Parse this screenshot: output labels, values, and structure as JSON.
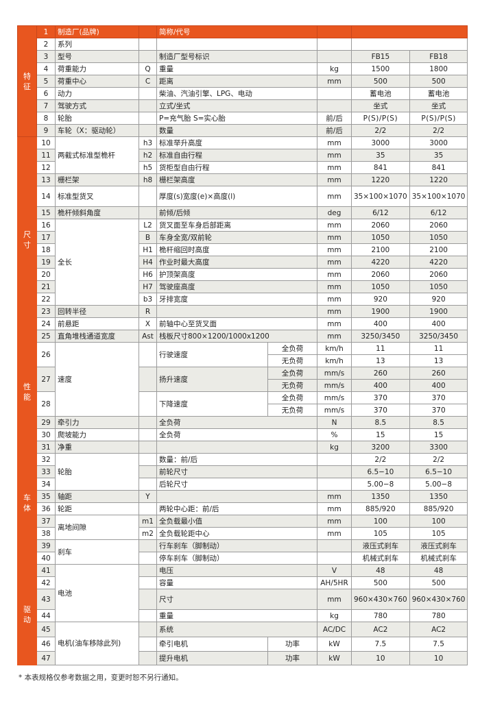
{
  "colors": {
    "accent": "#e8561f",
    "row_alt": "#ebebe6",
    "border": "#9a9a9a"
  },
  "sections": [
    {
      "label": "特征",
      "from": 1,
      "to": 9
    },
    {
      "label": "尺寸",
      "from": 10,
      "to": 25
    },
    {
      "label": "性能",
      "from": 26,
      "to": 30
    },
    {
      "label": "车体",
      "from": 31,
      "to": 40
    },
    {
      "label": "驱动",
      "from": 41,
      "to": 47
    }
  ],
  "groups": [
    {
      "label": "两截式标准型桅杆",
      "from": 10,
      "to": 12
    },
    {
      "label": "全长",
      "from": 16,
      "to": 22
    },
    {
      "label": "速度",
      "from": 26,
      "to": 28
    },
    {
      "label": "轮胎",
      "from": 32,
      "to": 34
    },
    {
      "label": "离地间隙",
      "from": 37,
      "to": 38
    },
    {
      "label": "刹车",
      "from": 39,
      "to": 40
    },
    {
      "label": "电池",
      "from": 41,
      "to": 44
    },
    {
      "label": "电机(油车移除此列)",
      "from": 45,
      "to": 47
    }
  ],
  "rows": [
    {
      "no": "1",
      "item": "制造厂(品牌)",
      "sym": "",
      "desc": "简称/代号",
      "unit": "",
      "merged": ""
    },
    {
      "no": "2",
      "item": "系列",
      "sym": "",
      "desc": "",
      "unit": "",
      "merged": ""
    },
    {
      "no": "3",
      "item": "型号",
      "sym": "",
      "desc": "制造厂型号标识",
      "unit": "",
      "v1": "FB15",
      "v2": "FB18"
    },
    {
      "no": "4",
      "item": "荷重能力",
      "sym": "Q",
      "desc": "重量",
      "unit": "kg",
      "v1": "1500",
      "v2": "1800"
    },
    {
      "no": "5",
      "item": "荷重中心",
      "sym": "C",
      "desc": "距离",
      "unit": "mm",
      "v1": "500",
      "v2": "500"
    },
    {
      "no": "6",
      "item": "动力",
      "sym": "",
      "desc": "柴油、汽油引擎、LPG、电动",
      "unit": "",
      "v1": "蓄电池",
      "v2": "蓄电池"
    },
    {
      "no": "7",
      "item": "驾驶方式",
      "sym": "",
      "desc": "立式/坐式",
      "unit": "",
      "v1": "坐式",
      "v2": "坐式"
    },
    {
      "no": "8",
      "item": "轮胎",
      "sym": "",
      "desc": "P=充气胎 S=实心胎",
      "unit": "前/后",
      "v1": "P(S)/P(S)",
      "v2": "P(S)/P(S)"
    },
    {
      "no": "9",
      "item": "车轮（X：驱动轮）",
      "sym": "",
      "desc": "数量",
      "unit": "前/后",
      "v1": "2/2",
      "v2": "2/2"
    },
    {
      "no": "10",
      "sym": "h3",
      "desc": "标准举升高度",
      "unit": "mm",
      "v1": "3000",
      "v2": "3000"
    },
    {
      "no": "11",
      "sym": "h2",
      "desc": "标准自由行程",
      "unit": "mm",
      "v1": "35",
      "v2": "35"
    },
    {
      "no": "12",
      "sym": "h5",
      "desc": "货柜型自由行程",
      "unit": "mm",
      "v1": "841",
      "v2": "841"
    },
    {
      "no": "13",
      "item": "栅栏架",
      "sym": "h8",
      "desc": "栅栏架高度",
      "unit": "mm",
      "v1": "1220",
      "v2": "1220"
    },
    {
      "no": "14",
      "item": "标准型货叉",
      "sym": "",
      "desc": "厚度(s)宽度(e)×高度(l)",
      "unit": "mm",
      "v1": "35×100×1070",
      "v2": "35×100×1070"
    },
    {
      "no": "15",
      "item": "桅杆倾斜角度",
      "sym": "",
      "desc": "前倾/后倾",
      "unit": "deg",
      "v1": "6/12",
      "v2": "6/12"
    },
    {
      "no": "16",
      "sym": "L2",
      "desc": "货叉面至车身后部距离",
      "unit": "mm",
      "v1": "2060",
      "v2": "2060"
    },
    {
      "no": "17",
      "sym": "B",
      "desc": "车身全宽/双前轮",
      "unit": "mm",
      "v1": "1050",
      "v2": "1050"
    },
    {
      "no": "18",
      "sym": "H1",
      "desc": "桅杆缩回时高度",
      "unit": "mm",
      "v1": "2100",
      "v2": "2100"
    },
    {
      "no": "19",
      "sym": "H4",
      "desc": "作业时最大高度",
      "unit": "mm",
      "v1": "4220",
      "v2": "4220"
    },
    {
      "no": "20",
      "sym": "H6",
      "desc": "护顶架高度",
      "unit": "mm",
      "v1": "2060",
      "v2": "2060"
    },
    {
      "no": "21",
      "sym": "H7",
      "desc": "驾驶座高度",
      "unit": "mm",
      "v1": "1050",
      "v2": "1050"
    },
    {
      "no": "22",
      "sym": "b3",
      "desc": "牙排宽度",
      "unit": "mm",
      "v1": "920",
      "v2": "920"
    },
    {
      "no": "23",
      "item": "回转半径",
      "sym": "R",
      "desc": "",
      "unit": "mm",
      "v1": "1900",
      "v2": "1900"
    },
    {
      "no": "24",
      "item": "前悬距",
      "sym": "X",
      "desc": "前轴中心至货叉面",
      "unit": "mm",
      "v1": "400",
      "v2": "400"
    },
    {
      "no": "25",
      "item": "直角堆栈通道宽度",
      "sym": "Ast",
      "desc": "栈板尺寸800×1200/1000x1200",
      "unit": "mm",
      "v1": "3250/3450",
      "v2": "3250/3450"
    },
    {
      "no": "26",
      "sym": "",
      "desc": "行驶速度",
      "sub": [
        {
          "cond": "全负荷",
          "unit": "km/h",
          "v1": "11",
          "v2": "11"
        },
        {
          "cond": "无负荷",
          "unit": "km/h",
          "v1": "13",
          "v2": "13"
        }
      ]
    },
    {
      "no": "27",
      "sym": "",
      "desc": "扬升速度",
      "sub": [
        {
          "cond": "全负荷",
          "unit": "mm/s",
          "v1": "260",
          "v2": "260"
        },
        {
          "cond": "无负荷",
          "unit": "mm/s",
          "v1": "400",
          "v2": "400"
        }
      ]
    },
    {
      "no": "28",
      "sym": "",
      "desc": "下降速度",
      "sub": [
        {
          "cond": "全负荷",
          "unit": "mm/s",
          "v1": "370",
          "v2": "370"
        },
        {
          "cond": "无负荷",
          "unit": "mm/s",
          "v1": "370",
          "v2": "370"
        }
      ]
    },
    {
      "no": "29",
      "item": "牵引力",
      "sym": "",
      "desc": "全负荷",
      "unit": "N",
      "v1": "8.5",
      "v2": "8.5"
    },
    {
      "no": "30",
      "item": "爬坡能力",
      "sym": "",
      "desc": "全负荷",
      "unit": "%",
      "v1": "15",
      "v2": "15"
    },
    {
      "no": "31",
      "item": "净重",
      "sym": "",
      "desc": "",
      "unit": "kg",
      "v1": "3200",
      "v2": "3300"
    },
    {
      "no": "32",
      "sym": "",
      "desc": "数量：前/后",
      "unit": "",
      "v1": "2/2",
      "v2": "2/2"
    },
    {
      "no": "33",
      "sym": "",
      "desc": "前轮尺寸",
      "unit": "",
      "v1": "6.5−10",
      "v2": "6.5−10"
    },
    {
      "no": "34",
      "sym": "",
      "desc": "后轮尺寸",
      "unit": "",
      "v1": "5.00−8",
      "v2": "5.00−8"
    },
    {
      "no": "35",
      "item": "轴距",
      "sym": "Y",
      "desc": "",
      "unit": "mm",
      "v1": "1350",
      "v2": "1350"
    },
    {
      "no": "36",
      "item": "轮距",
      "sym": "",
      "desc": "两轮中心距：前/后",
      "unit": "mm",
      "v1": "885/920",
      "v2": "885/920"
    },
    {
      "no": "37",
      "sym": "m1",
      "desc": "全负载最小值",
      "unit": "mm",
      "v1": "100",
      "v2": "100"
    },
    {
      "no": "38",
      "sym": "m2",
      "desc": "全负载轮距中心",
      "unit": "mm",
      "v1": "105",
      "v2": "105"
    },
    {
      "no": "39",
      "sym": "",
      "desc": "行车刹车（脚制动）",
      "unit": "",
      "v1": "液压式刹车",
      "v2": "液压式刹车"
    },
    {
      "no": "40",
      "sym": "",
      "desc": "停车刹车（脚制动）",
      "unit": "",
      "v1": "机械式刹车",
      "v2": "机械式刹车"
    },
    {
      "no": "41",
      "sym": "",
      "desc": "电压",
      "unit": "V",
      "v1": "48",
      "v2": "48"
    },
    {
      "no": "42",
      "sym": "",
      "desc": "容量",
      "unit": "AH/5HR",
      "v1": "500",
      "v2": "500"
    },
    {
      "no": "43",
      "sym": "",
      "desc": "尺寸",
      "unit": "mm",
      "v1": "960×430×760",
      "v2": "960×430×760"
    },
    {
      "no": "44",
      "sym": "",
      "desc": "重量",
      "unit": "kg",
      "v1": "780",
      "v2": "780"
    },
    {
      "no": "45",
      "sym": "",
      "desc": "系统",
      "unit": "AC/DC",
      "v1": "AC2",
      "v2": "AC2"
    },
    {
      "no": "46",
      "sym": "",
      "desc": "牵引电机",
      "cond": "功率",
      "unit": "kW",
      "v1": "7.5",
      "v2": "7.5"
    },
    {
      "no": "47",
      "sym": "",
      "desc": "提升电机",
      "cond": "功率",
      "unit": "kW",
      "v1": "10",
      "v2": "10"
    }
  ],
  "footnote": "* 本表规格仅参考数据之用，变更时恕不另行通知。"
}
